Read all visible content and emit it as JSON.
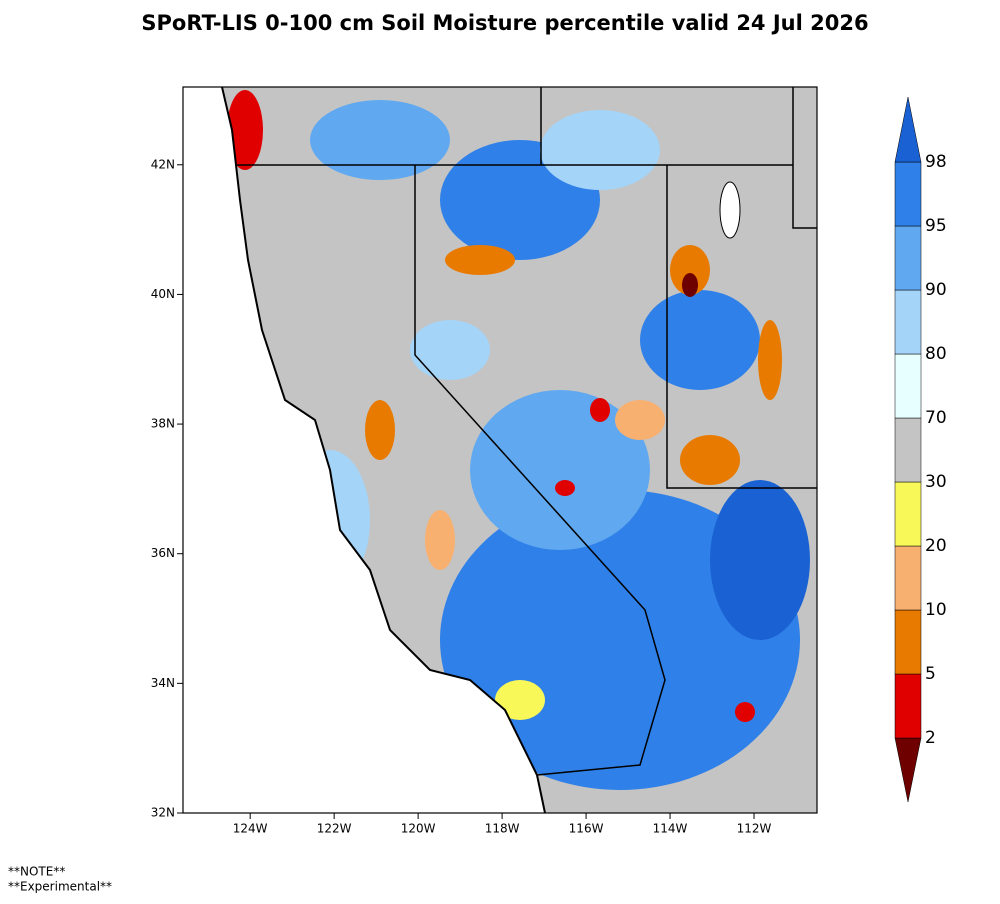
{
  "title": "SPoRT-LIS 0-100 cm Soil Moisture percentile valid 24 Jul 2026",
  "map": {
    "xlim": [
      -125.6,
      -110.5
    ],
    "ylim": [
      32,
      43.2
    ],
    "xticks": [
      {
        "value": -124,
        "label": "124W"
      },
      {
        "value": -122,
        "label": "122W"
      },
      {
        "value": -120,
        "label": "120W"
      },
      {
        "value": -118,
        "label": "118W"
      },
      {
        "value": -116,
        "label": "116W"
      },
      {
        "value": -114,
        "label": "114W"
      },
      {
        "value": -112,
        "label": "112W"
      }
    ],
    "yticks": [
      {
        "value": 32,
        "label": "32N"
      },
      {
        "value": 34,
        "label": "34N"
      },
      {
        "value": 36,
        "label": "36N"
      },
      {
        "value": 38,
        "label": "38N"
      },
      {
        "value": 40,
        "label": "40N"
      },
      {
        "value": 42,
        "label": "42N"
      }
    ]
  },
  "colorbar": {
    "levels": [
      2,
      5,
      10,
      20,
      30,
      70,
      80,
      90,
      95,
      98
    ],
    "colors": [
      "#6e0000",
      "#e00000",
      "#e87a00",
      "#f8b070",
      "#f8f858",
      "#c4c4c4",
      "#e8ffff",
      "#a4d4f8",
      "#60a8f0",
      "#2f80e8",
      "#1a62d4"
    ]
  },
  "notes": [
    "**NOTE**",
    "**Experimental**"
  ]
}
